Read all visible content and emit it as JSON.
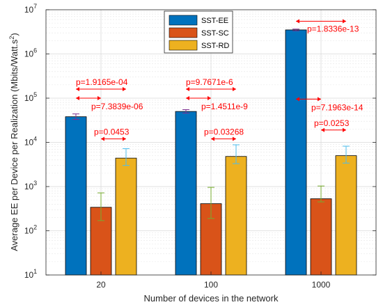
{
  "chart_data": {
    "type": "bar",
    "categories": [
      "20",
      "100",
      "1000"
    ],
    "xlabel": "Number of devices in the network",
    "ylabel": "Average EE per Device per Realization (Mbits/Watt.s",
    "ylabel_sup": "2",
    "ylabel_close": ")",
    "yscale": "log",
    "ylim": [
      10,
      10000000
    ],
    "ytick_labels": [
      {
        "base": "10",
        "exp": "1",
        "value": 10
      },
      {
        "base": "10",
        "exp": "2",
        "value": 100
      },
      {
        "base": "10",
        "exp": "3",
        "value": 1000
      },
      {
        "base": "10",
        "exp": "4",
        "value": 10000
      },
      {
        "base": "10",
        "exp": "5",
        "value": 100000
      },
      {
        "base": "10",
        "exp": "6",
        "value": 1000000
      },
      {
        "base": "10",
        "exp": "7",
        "value": 10000000
      }
    ],
    "grid": true,
    "legend_position": "top-center",
    "series": [
      {
        "name": "SST-EE",
        "color": "#0072BD",
        "error_color": "#7E2F8E",
        "values": [
          38000,
          50000,
          3500000
        ],
        "err_low": [
          33000,
          46000,
          3350000
        ],
        "err_high": [
          44000,
          55000,
          3650000
        ]
      },
      {
        "name": "SST-SC",
        "color": "#D95319",
        "error_color": "#77AC30",
        "values": [
          340,
          410,
          530
        ],
        "err_low": [
          170,
          190,
          450
        ],
        "err_high": [
          720,
          960,
          1030
        ]
      },
      {
        "name": "SST-RD",
        "color": "#EDB120",
        "error_color": "#4DBEEE",
        "values": [
          4400,
          4800,
          5000
        ],
        "err_low": [
          3000,
          3300,
          3400
        ],
        "err_high": [
          7200,
          8800,
          8200
        ]
      }
    ],
    "annotations": [
      {
        "text": "p=1.9165e-04",
        "category": 0,
        "from_series": 0,
        "to_series": 2,
        "arrow_y": 160000
      },
      {
        "text": "p=7.3839e-06",
        "category": 0,
        "from_series": 0,
        "to_series": 1,
        "arrow_y": 100000
      },
      {
        "text": "p=0.0453",
        "category": 0,
        "from_series": 1,
        "to_series": 2,
        "arrow_y": 12000
      },
      {
        "text": "p=9.7671e-6",
        "category": 1,
        "from_series": 0,
        "to_series": 2,
        "arrow_y": 160000
      },
      {
        "text": "p=1.4511e-9",
        "category": 1,
        "from_series": 0,
        "to_series": 1,
        "arrow_y": 100000
      },
      {
        "text": "p=0.03268",
        "category": 1,
        "from_series": 1,
        "to_series": 2,
        "arrow_y": 12000
      },
      {
        "text": "p=1.8336e-13",
        "category": 2,
        "from_series": 0,
        "to_series": 2,
        "arrow_y": 5500000
      },
      {
        "text": "p=7.1963e-14",
        "category": 2,
        "from_series": 0,
        "to_series": 1,
        "arrow_y": 95000
      },
      {
        "text": "p=0.0253",
        "category": 2,
        "from_series": 1,
        "to_series": 2,
        "arrow_y": 19000
      }
    ],
    "annotation_color": "#FF0000"
  }
}
